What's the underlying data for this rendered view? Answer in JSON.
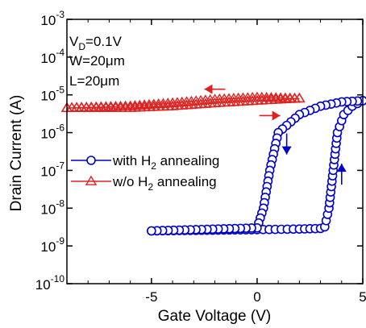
{
  "chart_data": {
    "type": "scatter",
    "xlabel": "Gate Voltage (V)",
    "ylabel": "Drain Current (A)",
    "xlim": [
      -9,
      5
    ],
    "ylim_log10": [
      -10,
      -3
    ],
    "y_scale": "log",
    "x_tick_labels": [
      "-5",
      "0",
      "5"
    ],
    "x_ticks": [
      -5,
      0,
      5
    ],
    "y_tick_exponents": [
      -10,
      -9,
      -8,
      -7,
      -6,
      -5,
      -4,
      -3
    ],
    "y_tick_base": "10",
    "annotations": {
      "vd": {
        "main": "V",
        "sub": "D",
        "rest": "=0.1V"
      },
      "w": {
        "main": "W=20",
        "mu": "μ",
        "rest": "m"
      },
      "l": {
        "main": "L=20",
        "mu": "μ",
        "rest": "m"
      }
    },
    "legend_position": "left-middle",
    "series": [
      {
        "name": "with H2 annealing",
        "legend_parts": [
          "with H",
          "2",
          " annealing"
        ],
        "color": "#0000cc",
        "marker": "circle",
        "forward": [
          [
            -5,
            2.5e-09
          ],
          [
            0,
            2.7e-09
          ],
          [
            2,
            2.8e-09
          ],
          [
            3,
            2.9e-09
          ],
          [
            3.2,
            3.2e-09
          ],
          [
            3.4,
            1e-08
          ],
          [
            3.6,
            1e-07
          ],
          [
            3.8,
            1e-06
          ],
          [
            4.1,
            3e-06
          ],
          [
            4.5,
            5e-06
          ],
          [
            5,
            7e-06
          ]
        ],
        "reverse": [
          [
            5,
            7e-06
          ],
          [
            4,
            6.5e-06
          ],
          [
            3,
            5e-06
          ],
          [
            2,
            3e-06
          ],
          [
            1,
            1e-06
          ],
          [
            0.6,
            1e-07
          ],
          [
            0.3,
            1e-08
          ],
          [
            0,
            3e-09
          ],
          [
            -5,
            2.5e-09
          ]
        ]
      },
      {
        "name": "w/o H2 annealing",
        "legend_parts": [
          "w/o H",
          "2",
          " annealing"
        ],
        "color": "#dd2222",
        "marker": "triangle",
        "forward": [
          [
            -9,
            4.5e-06
          ],
          [
            -6,
            4.5e-06
          ],
          [
            -4,
            5e-06
          ],
          [
            -2,
            6e-06
          ],
          [
            0,
            7e-06
          ],
          [
            2,
            8e-06
          ]
        ],
        "reverse": [
          [
            2,
            8e-06
          ],
          [
            0,
            8.5e-06
          ],
          [
            -2,
            7.5e-06
          ],
          [
            -4,
            6e-06
          ],
          [
            -6,
            5e-06
          ],
          [
            -9,
            4.5e-06
          ]
        ]
      }
    ],
    "arrows": [
      {
        "series": "w/o H2 annealing",
        "direction": "left",
        "at_x": -2,
        "at_logy": -4.85
      },
      {
        "series": "w/o H2 annealing",
        "direction": "right",
        "at_x": 0.6,
        "at_logy": -5.55
      },
      {
        "series": "with H2 annealing",
        "direction": "down",
        "at_x": 1.4,
        "at_logy": -6.3
      },
      {
        "series": "with H2 annealing",
        "direction": "up",
        "at_x": 4.0,
        "at_logy": -7.1
      }
    ]
  }
}
